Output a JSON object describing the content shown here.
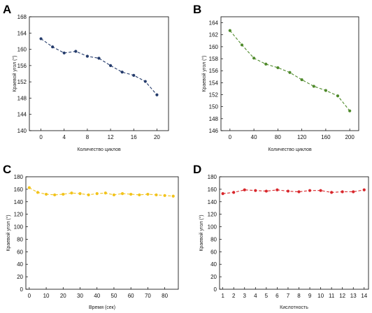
{
  "chart_data": [
    {
      "panel": "A",
      "type": "line",
      "xlabel": "Количество циклов",
      "ylabel": "Краевой угол (°)",
      "xlim": [
        -2,
        22
      ],
      "ylim": [
        140,
        168
      ],
      "xticks": [
        0,
        4,
        8,
        12,
        16,
        20
      ],
      "yticks": [
        140,
        144,
        148,
        152,
        156,
        160,
        164,
        168
      ],
      "color": "#243b6b",
      "series": [
        {
          "x": [
            0,
            2,
            4,
            6,
            8,
            10,
            12,
            14,
            16,
            18,
            20
          ],
          "y": [
            162.6,
            160.6,
            159.1,
            159.5,
            158.3,
            157.8,
            156.0,
            154.4,
            153.6,
            152.1,
            148.8
          ]
        }
      ]
    },
    {
      "panel": "B",
      "type": "line",
      "xlabel": "Количество циклов",
      "ylabel": "Краевой угол (°)",
      "xlim": [
        -15,
        215
      ],
      "ylim": [
        146,
        165
      ],
      "xticks": [
        0,
        40,
        80,
        120,
        160,
        200
      ],
      "yticks": [
        146,
        148,
        150,
        152,
        154,
        156,
        158,
        160,
        162,
        164
      ],
      "color": "#4f8a2b",
      "series": [
        {
          "x": [
            0,
            20,
            40,
            60,
            80,
            100,
            120,
            140,
            160,
            180,
            200
          ],
          "y": [
            162.7,
            160.3,
            158.1,
            157.1,
            156.5,
            155.7,
            154.5,
            153.4,
            152.7,
            151.8,
            149.3
          ]
        }
      ]
    },
    {
      "panel": "C",
      "type": "line",
      "xlabel": "Время (сек)",
      "ylabel": "Краевой угол (°)",
      "xlim": [
        -2,
        88
      ],
      "ylim": [
        0,
        180
      ],
      "xticks": [
        0,
        10,
        20,
        30,
        40,
        50,
        60,
        70,
        80
      ],
      "yticks": [
        0,
        20,
        40,
        60,
        80,
        100,
        120,
        140,
        160,
        180
      ],
      "color": "#f2c31b",
      "series": [
        {
          "x": [
            0,
            5,
            10,
            15,
            20,
            25,
            30,
            35,
            40,
            45,
            50,
            55,
            60,
            65,
            70,
            75,
            80,
            85
          ],
          "y": [
            162.5,
            155,
            152,
            151,
            152,
            154,
            153,
            151,
            153,
            154,
            151,
            153,
            152,
            151,
            152,
            151,
            150,
            149
          ]
        }
      ]
    },
    {
      "panel": "D",
      "type": "line",
      "xlabel": "Кислотность",
      "ylabel": "Краевой угол (°)",
      "xlim": [
        0.7,
        14.4
      ],
      "ylim": [
        0,
        180
      ],
      "xticks": [
        1,
        2,
        3,
        4,
        5,
        6,
        7,
        8,
        9,
        10,
        11,
        12,
        13,
        14
      ],
      "yticks": [
        0,
        20,
        40,
        60,
        80,
        100,
        120,
        140,
        160,
        180
      ],
      "color": "#d8262b",
      "series": [
        {
          "x": [
            1,
            2,
            3,
            4,
            5,
            6,
            7,
            8,
            9,
            10,
            11,
            12,
            13,
            14
          ],
          "y": [
            153,
            155,
            159,
            158,
            157,
            159,
            157,
            156,
            158,
            158,
            155,
            156,
            156,
            159
          ]
        }
      ]
    }
  ]
}
